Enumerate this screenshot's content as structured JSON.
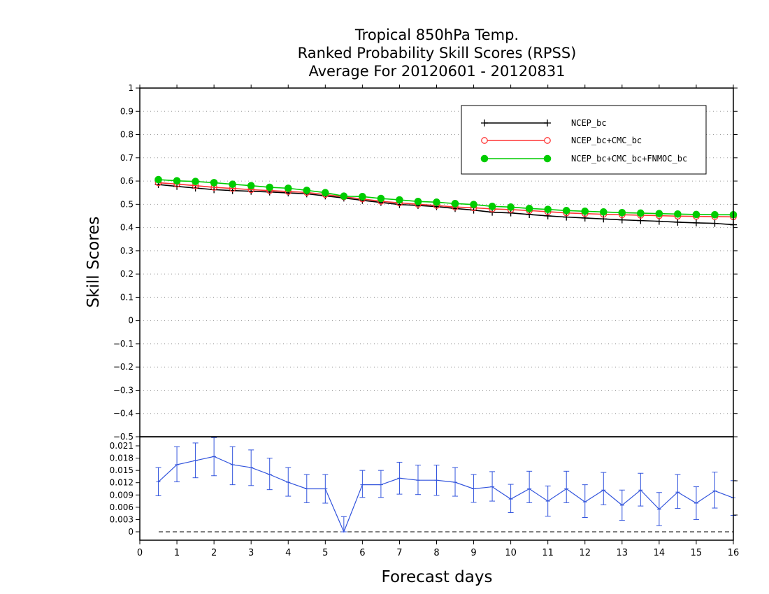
{
  "chart_data": {
    "type": "line",
    "title": [
      "Tropical 850hPa Temp.",
      "Ranked Probability Skill Scores (RPSS)",
      "Average For 20120601 - 20120831"
    ],
    "xlabel": "Forecast days",
    "ylabel": "Skill Scores",
    "xlim": [
      0,
      16
    ],
    "x_ticks": [
      "0",
      "1",
      "2",
      "3",
      "4",
      "5",
      "6",
      "7",
      "8",
      "9",
      "10",
      "11",
      "12",
      "13",
      "14",
      "15",
      "16"
    ],
    "grid": "horizontal dotted",
    "legend_position": "top-right",
    "x": [
      0.5,
      1,
      1.5,
      2,
      2.5,
      3,
      3.5,
      4,
      4.5,
      5,
      5.5,
      6,
      6.5,
      7,
      7.5,
      8,
      8.5,
      9,
      9.5,
      10,
      10.5,
      11,
      11.5,
      12,
      12.5,
      13,
      13.5,
      14,
      14.5,
      15,
      15.5,
      16
    ],
    "main_panel": {
      "ylim": [
        -0.5,
        1
      ],
      "y_ticks": [
        "1",
        "0.9",
        "0.8",
        "0.7",
        "0.6",
        "0.5",
        "0.4",
        "0.3",
        "0.2",
        "0.1",
        "0",
        "−0.1",
        "−0.2",
        "−0.3",
        "−0.4",
        "−0.5"
      ],
      "series": [
        {
          "name": "NCEP_bc",
          "color": "#000000",
          "marker": "plus",
          "values": [
            0.585,
            0.577,
            0.57,
            0.563,
            0.559,
            0.556,
            0.553,
            0.549,
            0.545,
            0.536,
            0.527,
            0.517,
            0.508,
            0.499,
            0.495,
            0.49,
            0.482,
            0.475,
            0.466,
            0.463,
            0.456,
            0.45,
            0.445,
            0.441,
            0.437,
            0.433,
            0.43,
            0.427,
            0.423,
            0.42,
            0.418,
            0.412
          ]
        },
        {
          "name": "NCEP_bc+CMC_bc",
          "color": "#ff3333",
          "marker": "open-circle",
          "values": [
            0.593,
            0.587,
            0.58,
            0.573,
            0.568,
            0.563,
            0.559,
            0.555,
            0.551,
            0.542,
            0.532,
            0.523,
            0.513,
            0.506,
            0.5,
            0.495,
            0.488,
            0.485,
            0.48,
            0.477,
            0.473,
            0.468,
            0.463,
            0.46,
            0.457,
            0.455,
            0.453,
            0.451,
            0.449,
            0.448,
            0.447,
            0.446
          ]
        },
        {
          "name": "NCEP_bc+CMC_bc+FNMOC_bc",
          "color": "#00cc00",
          "marker": "filled-circle",
          "values": [
            0.606,
            0.601,
            0.598,
            0.593,
            0.586,
            0.58,
            0.573,
            0.569,
            0.56,
            0.55,
            0.535,
            0.533,
            0.525,
            0.519,
            0.512,
            0.509,
            0.503,
            0.499,
            0.491,
            0.488,
            0.482,
            0.478,
            0.473,
            0.47,
            0.467,
            0.464,
            0.462,
            0.46,
            0.458,
            0.456,
            0.455,
            0.455
          ]
        }
      ]
    },
    "difference_panel": {
      "ylim": [
        0,
        0.022
      ],
      "y_ticks": [
        "0.021",
        "0.018",
        "0.015",
        "0.012",
        "0.009",
        "0.006",
        "0.003",
        "0"
      ],
      "color": "#3355dd",
      "values": [
        0.0122,
        0.0164,
        0.0174,
        0.0184,
        0.0164,
        0.0157,
        0.014,
        0.0121,
        0.0105,
        0.0105,
        0,
        0.0115,
        0.0115,
        0.0131,
        0.0126,
        0.0126,
        0.0121,
        0.0105,
        0.011,
        0.008,
        0.0105,
        0.0075,
        0.0105,
        0.0073,
        0.0102,
        0.0065,
        0.0102,
        0.0055,
        0.0097,
        0.007,
        0.01,
        0.0083
      ],
      "error_low": [
        0.0088,
        0.0122,
        0.0132,
        0.0137,
        0.0115,
        0.0113,
        0.0103,
        0.0087,
        0.0071,
        0.007,
        0.0,
        0.0084,
        0.0084,
        0.0092,
        0.0091,
        0.0089,
        0.0087,
        0.0072,
        0.0075,
        0.0047,
        0.0071,
        0.0038,
        0.0071,
        0.0035,
        0.0066,
        0.0028,
        0.0063,
        0.0015,
        0.0057,
        0.003,
        0.0058,
        0.004
      ],
      "error_high": [
        0.0157,
        0.0208,
        0.0217,
        0.023,
        0.0208,
        0.02,
        0.018,
        0.0157,
        0.014,
        0.014,
        0.0037,
        0.015,
        0.015,
        0.017,
        0.0163,
        0.0163,
        0.0157,
        0.014,
        0.0147,
        0.0116,
        0.0148,
        0.0112,
        0.0148,
        0.0115,
        0.0145,
        0.0102,
        0.0143,
        0.0096,
        0.014,
        0.011,
        0.0146,
        0.0125
      ]
    }
  }
}
